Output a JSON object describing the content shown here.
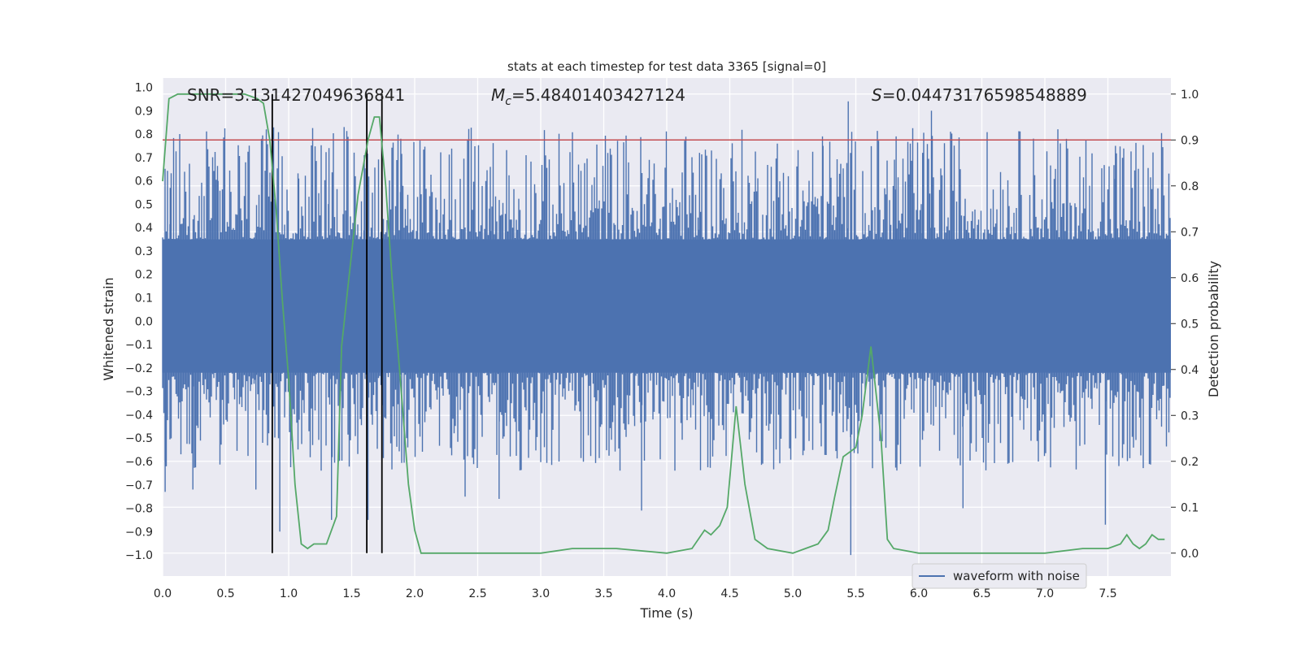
{
  "chart_data": {
    "type": "line",
    "title": "stats at each timestep for test data 3365 [signal=0]",
    "xlabel": "Time (s)",
    "ylabel_left": "Whitened strain",
    "ylabel_right": "Detection probability",
    "xlim": [
      0.0,
      8.0
    ],
    "ylim_left": [
      -1.09,
      1.04
    ],
    "ylim_right": [
      -0.05,
      1.035
    ],
    "x_ticks": [
      0.0,
      0.5,
      1.0,
      1.5,
      2.0,
      2.5,
      3.0,
      3.5,
      4.0,
      4.5,
      5.0,
      5.5,
      6.0,
      6.5,
      7.0,
      7.5
    ],
    "x_tick_labels": [
      "0.0",
      "0.5",
      "1.0",
      "1.5",
      "2.0",
      "2.5",
      "3.0",
      "3.5",
      "4.0",
      "4.5",
      "5.0",
      "5.5",
      "6.0",
      "6.5",
      "7.0",
      "7.5"
    ],
    "y_left_ticks": [
      1.0,
      0.9,
      0.8,
      0.7,
      0.6,
      0.5,
      0.4,
      0.3,
      0.2,
      0.1,
      0.0,
      -0.1,
      -0.2,
      -0.3,
      -0.4,
      -0.5,
      -0.6,
      -0.7,
      -0.8,
      -0.9,
      -1.0
    ],
    "y_left_tick_labels": [
      "1.0",
      "0.9",
      "0.8",
      "0.7",
      "0.6",
      "0.5",
      "0.4",
      "0.3",
      "0.2",
      "0.1",
      "0.0",
      "−0.1",
      "−0.2",
      "−0.3",
      "−0.4",
      "−0.5",
      "−0.6",
      "−0.7",
      "−0.8",
      "−0.9",
      "−1.0"
    ],
    "y_right_ticks": [
      1.0,
      0.9,
      0.8,
      0.7,
      0.6,
      0.5,
      0.4,
      0.3,
      0.2,
      0.1,
      0.0
    ],
    "y_right_tick_labels": [
      "1.0",
      "0.9",
      "0.8",
      "0.7",
      "0.6",
      "0.5",
      "0.4",
      "0.3",
      "0.2",
      "0.1",
      "0.0"
    ],
    "annotations": {
      "snr": "SNR=3.131427049636841",
      "mc_symbol": "M",
      "mc_subscript": "c",
      "mc_value": "=5.48401403427124",
      "s_symbol": "S",
      "s_value": "=0.04473176598548889"
    },
    "legend": {
      "label": "waveform with noise",
      "location": "lower right"
    },
    "threshold": {
      "value": 0.9,
      "axis": "right",
      "color": "#c44e52"
    },
    "vertical_markers": [
      0.87,
      1.62,
      1.74
    ],
    "waveform": {
      "name": "waveform with noise",
      "color": "#4c72b0",
      "core_band": [
        -0.22,
        0.35
      ],
      "peaks_up": [
        [
          0.06,
          0.57
        ],
        [
          0.44,
          0.6
        ],
        [
          1.08,
          0.61
        ],
        [
          1.32,
          0.74
        ],
        [
          1.44,
          0.83
        ],
        [
          1.6,
          0.71
        ],
        [
          1.74,
          0.86
        ],
        [
          1.89,
          0.78
        ],
        [
          2.6,
          0.66
        ],
        [
          3.3,
          0.67
        ],
        [
          4.26,
          0.72
        ],
        [
          5.24,
          0.75
        ],
        [
          5.44,
          0.94
        ],
        [
          5.82,
          0.79
        ],
        [
          6.03,
          0.72
        ],
        [
          6.1,
          0.9
        ],
        [
          7.56,
          0.75
        ]
      ],
      "peaks_down": [
        [
          0.02,
          -0.73
        ],
        [
          0.24,
          -0.72
        ],
        [
          0.74,
          -0.72
        ],
        [
          0.93,
          -0.9
        ],
        [
          1.34,
          -0.85
        ],
        [
          1.63,
          -0.85
        ],
        [
          2.4,
          -0.75
        ],
        [
          2.67,
          -0.76
        ],
        [
          3.8,
          -0.81
        ],
        [
          5.46,
          -1.0
        ],
        [
          6.35,
          -0.8
        ],
        [
          7.48,
          -0.87
        ]
      ],
      "noise_floor": 0.42,
      "noise_top": 0.48
    },
    "detection_probability": {
      "name": "detection probability",
      "color": "#55a868",
      "x": [
        0.0,
        0.05,
        0.12,
        0.3,
        0.5,
        0.65,
        0.75,
        0.8,
        0.85,
        0.9,
        0.95,
        1.0,
        1.05,
        1.1,
        1.15,
        1.2,
        1.3,
        1.38,
        1.42,
        1.47,
        1.55,
        1.63,
        1.68,
        1.72,
        1.77,
        1.82,
        1.88,
        1.95,
        2.0,
        2.05,
        2.15,
        2.4,
        2.6,
        3.0,
        3.25,
        3.6,
        4.0,
        4.2,
        4.3,
        4.35,
        4.42,
        4.48,
        4.55,
        4.62,
        4.7,
        4.8,
        5.0,
        5.1,
        5.2,
        5.28,
        5.33,
        5.4,
        5.45,
        5.5,
        5.55,
        5.62,
        5.7,
        5.75,
        5.8,
        6.0,
        6.5,
        7.0,
        7.3,
        7.5,
        7.6,
        7.65,
        7.7,
        7.75,
        7.8,
        7.85,
        7.9,
        7.95
      ],
      "y": [
        0.81,
        0.99,
        1.0,
        1.0,
        1.0,
        1.0,
        0.99,
        0.98,
        0.9,
        0.75,
        0.55,
        0.38,
        0.15,
        0.02,
        0.01,
        0.02,
        0.02,
        0.08,
        0.45,
        0.58,
        0.78,
        0.9,
        0.95,
        0.95,
        0.8,
        0.6,
        0.4,
        0.15,
        0.05,
        0.0,
        0.0,
        0.0,
        0.0,
        0.0,
        0.01,
        0.01,
        0.0,
        0.01,
        0.05,
        0.04,
        0.06,
        0.1,
        0.32,
        0.15,
        0.03,
        0.01,
        0.0,
        0.01,
        0.02,
        0.05,
        0.12,
        0.21,
        0.22,
        0.23,
        0.3,
        0.45,
        0.25,
        0.03,
        0.01,
        0.0,
        0.0,
        0.0,
        0.01,
        0.01,
        0.02,
        0.04,
        0.02,
        0.01,
        0.02,
        0.04,
        0.03,
        0.03
      ]
    }
  }
}
